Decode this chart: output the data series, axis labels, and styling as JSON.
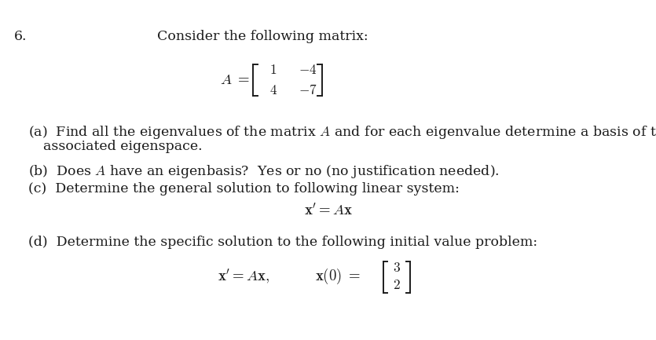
{
  "problem_number": "6.",
  "intro_text": "Consider the following matrix:",
  "matrix_row1": [
    "1",
    "-4"
  ],
  "matrix_row2": [
    "4",
    "-7"
  ],
  "part_a_line1": "(a)  Find all the eigenvalues of the matrix $A$ and for each eigenvalue determine a basis of the",
  "part_a_line2": "associated eigenspace.",
  "part_b": "(b)  Does $A$ have an eigenbasis?  Yes or no (no justification needed).",
  "part_c": "(c)  Determine the general solution to following linear system:",
  "part_d": "(d)  Determine the specific solution to the following initial value problem:",
  "iv_row1": "3",
  "iv_row2": "2",
  "bg_color": "#ffffff",
  "text_color": "#1c1c1c",
  "font_size": 12.5
}
